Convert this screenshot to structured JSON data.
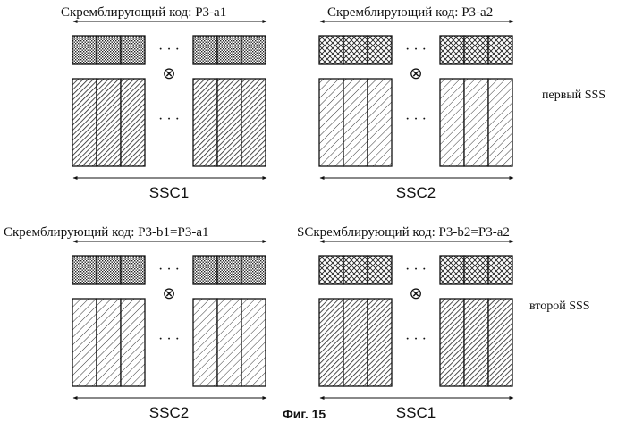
{
  "panels": [
    {
      "id": "top-left",
      "scrambling_label": "Скремблирующий код: P3-a1",
      "ssc_label": "SSC1",
      "code_pattern": "dots",
      "block_pattern": "hatch-dense"
    },
    {
      "id": "top-right",
      "scrambling_label": "Скремблирующий код: P3-a2",
      "ssc_label": "SSC2",
      "code_pattern": "crosshatch",
      "block_pattern": "hatch-sparse"
    },
    {
      "id": "bottom-left",
      "scrambling_label": "Скремблирующий код: P3-b1=P3-a1",
      "ssc_label": "SSC2",
      "code_pattern": "dots",
      "block_pattern": "hatch-sparse"
    },
    {
      "id": "bottom-right",
      "scrambling_label": "SСкремблирующий код: P3-b2=P3-a2",
      "ssc_label": "SSC1",
      "code_pattern": "crosshatch",
      "block_pattern": "hatch-dense"
    }
  ],
  "labels": {
    "first_sss": "первый SSS",
    "second_sss": "второй SSS",
    "ellipsis": "· · ·",
    "multiply_symbol": "⊗",
    "caption": "Фиг. 15"
  }
}
